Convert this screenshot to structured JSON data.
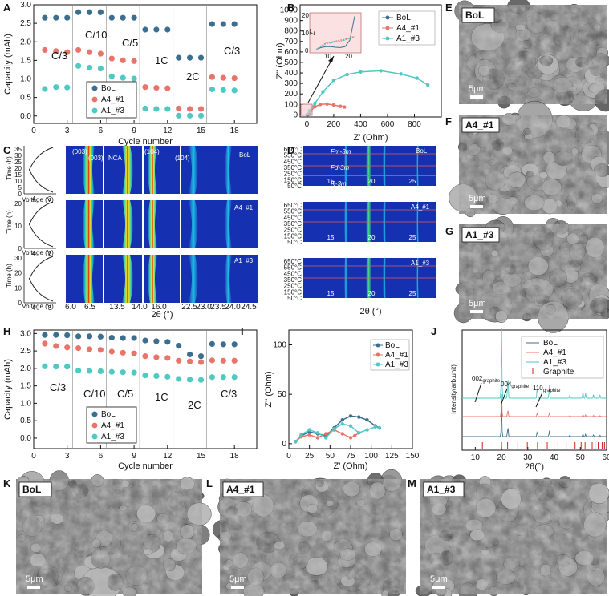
{
  "colors": {
    "bol": "#3c6e8f",
    "a4": "#e8746a",
    "a1": "#4fc9c2",
    "graphite": "#d02020",
    "map_bg": "#1530b0"
  },
  "panels": {
    "A": "A",
    "B": "B",
    "C": "C",
    "D": "D",
    "E": "E",
    "F": "F",
    "G": "G",
    "H": "H",
    "I": "I",
    "J": "J",
    "K": "K",
    "L": "L",
    "M": "M"
  },
  "sem": {
    "E": {
      "tag": "BoL",
      "scale": "5μm"
    },
    "F": {
      "tag": "A4_#1",
      "scale": "5μm"
    },
    "G": {
      "tag": "A1_#3",
      "scale": "5μm"
    },
    "K": {
      "tag": "BoL",
      "scale": "5μm"
    },
    "L": {
      "tag": "A4_#1",
      "scale": "5μm"
    },
    "M": {
      "tag": "A1_#3",
      "scale": "5μm"
    }
  },
  "chart_data": [
    {
      "id": "A",
      "type": "scatter",
      "xlabel": "Cycle number",
      "ylabel": "Capacity (mAh)",
      "xlim": [
        0,
        20
      ],
      "ylim": [
        -0.2,
        3.0
      ],
      "xticks": [
        "0",
        "3",
        "6",
        "9",
        "12",
        "15",
        "18"
      ],
      "yticks": [
        "0.0",
        "0.5",
        "1.0",
        "1.5",
        "2.0",
        "2.5",
        "3.0"
      ],
      "rate_labels": [
        "C/3",
        "C/10",
        "C/5",
        "1C",
        "2C",
        "C/3"
      ],
      "x": [
        1,
        2,
        3,
        4,
        5,
        6,
        7,
        8,
        9,
        10,
        11,
        12,
        13,
        14,
        15,
        16,
        17,
        18
      ],
      "series": [
        {
          "name": "BoL",
          "values": [
            2.65,
            2.65,
            2.65,
            2.8,
            2.8,
            2.8,
            2.65,
            2.65,
            2.65,
            2.33,
            2.33,
            2.33,
            1.57,
            1.57,
            1.57,
            2.48,
            2.48,
            2.48
          ]
        },
        {
          "name": "A4_#1",
          "values": [
            1.78,
            1.75,
            1.72,
            1.78,
            1.72,
            1.68,
            1.55,
            1.5,
            1.48,
            0.78,
            0.76,
            0.75,
            0.2,
            0.19,
            0.19,
            1.05,
            1.03,
            1.02
          ]
        },
        {
          "name": "A1_#3",
          "values": [
            0.73,
            0.78,
            0.77,
            1.35,
            1.3,
            1.28,
            1.07,
            1.03,
            1.01,
            0.2,
            0.19,
            0.19,
            0.01,
            0.01,
            0.01,
            0.72,
            0.7,
            0.69
          ]
        }
      ]
    },
    {
      "id": "B",
      "type": "line",
      "xlabel": "Z' (Ohm)",
      "ylabel": "Z'' (Ohm)",
      "xlim": [
        -50,
        1000
      ],
      "ylim": [
        -20,
        1050
      ],
      "xticks": [
        "0",
        "200",
        "400",
        "600",
        "800"
      ],
      "yticks": [
        "0",
        "100",
        "200",
        "300",
        "400",
        "500",
        "600",
        "700",
        "800",
        "900",
        "1000"
      ],
      "series": [
        {
          "name": "BoL",
          "x": [
            3,
            5,
            8,
            10,
            12,
            14
          ],
          "y": [
            2,
            3,
            3,
            4,
            6,
            9
          ]
        },
        {
          "name": "A4_#1",
          "x": [
            5,
            30,
            60,
            100,
            150,
            200,
            250,
            280
          ],
          "y": [
            4,
            40,
            78,
            100,
            104,
            95,
            82,
            75
          ]
        },
        {
          "name": "A1_#3",
          "x": [
            3,
            20,
            60,
            120,
            200,
            300,
            400,
            550,
            700,
            820,
            900
          ],
          "y": [
            4,
            40,
            110,
            220,
            330,
            385,
            410,
            420,
            390,
            350,
            285
          ]
        }
      ],
      "inset": {
        "xticks": [
          "10",
          "20"
        ],
        "yticks": [
          "0",
          "10",
          "20"
        ],
        "ylabel": "Z''",
        "series": [
          {
            "name": "BoL",
            "x": [
              6,
              8,
              10,
              12,
              14,
              16,
              18,
              20,
              22
            ],
            "y": [
              1,
              2,
              2.5,
              2.5,
              2.2,
              2,
              2.5,
              6,
              19
            ]
          },
          {
            "name": "A4_#1",
            "x": [
              6,
              8,
              10,
              12,
              14,
              16,
              18,
              20,
              22
            ],
            "y": [
              1,
              3,
              4.5,
              5,
              5.5,
              6,
              6.5,
              7.5,
              8
            ]
          },
          {
            "name": "A1_#3",
            "x": [
              6,
              8,
              10,
              12,
              14,
              16,
              18,
              20,
              22
            ],
            "y": [
              1,
              2.5,
              4,
              4.5,
              5,
              5.5,
              6,
              7,
              7.5
            ]
          }
        ]
      }
    },
    {
      "id": "C",
      "type": "heatmap",
      "xlabel": "2θ (°)",
      "voltage_label": "Voltage (V)",
      "time_label": "Time (h)",
      "xticks": [
        "6.0",
        "6.5",
        "13.5",
        "14.0",
        "16.0",
        "22.5",
        "23.0",
        "23.5",
        "24.0",
        "24.5"
      ],
      "voltage_ticks": [
        "4",
        "3"
      ],
      "time_ticks_BoL": [
        "0",
        "5",
        "10",
        "15",
        "20",
        "25",
        "30",
        "35"
      ],
      "time_ticks_A4": [
        "0",
        "10",
        "20"
      ],
      "time_ticks_A1": [
        "0",
        "10",
        "20",
        "30"
      ],
      "annotations": [
        "(003)",
        "(003)",
        "NCA",
        "(104)",
        "(104)"
      ],
      "sample_labels": [
        "BoL",
        "A4_#1",
        "A1_#3"
      ]
    },
    {
      "id": "D",
      "type": "heatmap",
      "xlabel": "2θ (°)",
      "xticks": [
        "15",
        "20",
        "25"
      ],
      "temperatures": [
        "650°C",
        "550°C",
        "450°C",
        "350°C",
        "250°C",
        "150°C",
        "50°C"
      ],
      "phases": [
        "Fm-3m",
        "Fd-3m",
        "R-3m"
      ],
      "sample_labels": [
        "BoL",
        "A4_#1",
        "A1_#3"
      ]
    },
    {
      "id": "H",
      "type": "scatter",
      "xlabel": "Cycle number",
      "ylabel": "Capacity (mAh)",
      "xlim": [
        0,
        20
      ],
      "ylim": [
        -0.3,
        3.1
      ],
      "xticks": [
        "0",
        "3",
        "6",
        "9",
        "12",
        "15",
        "18"
      ],
      "yticks": [
        "0.0",
        "0.5",
        "1.0",
        "1.5",
        "2.0",
        "2.5",
        "3.0"
      ],
      "rate_labels": [
        "C/3",
        "C/10",
        "C/5",
        "1C",
        "2C",
        "C/3"
      ],
      "x": [
        1,
        2,
        3,
        4,
        5,
        6,
        7,
        8,
        9,
        10,
        11,
        12,
        13,
        14,
        15,
        16,
        17,
        18
      ],
      "series": [
        {
          "name": "BoL",
          "values": [
            2.96,
            2.96,
            2.95,
            2.92,
            2.92,
            2.91,
            2.88,
            2.87,
            2.87,
            2.8,
            2.78,
            2.76,
            2.65,
            2.4,
            2.35,
            2.7,
            2.69,
            2.69
          ]
        },
        {
          "name": "A4_#1",
          "values": [
            2.71,
            2.64,
            2.6,
            2.58,
            2.55,
            2.53,
            2.48,
            2.45,
            2.43,
            2.35,
            2.32,
            2.3,
            2.22,
            2.2,
            2.18,
            2.23,
            2.22,
            2.22
          ]
        },
        {
          "name": "A1_#3",
          "values": [
            2.06,
            2.05,
            2.05,
            1.94,
            1.93,
            1.92,
            1.9,
            1.89,
            1.88,
            1.8,
            1.78,
            1.76,
            1.7,
            1.68,
            1.67,
            1.75,
            1.75,
            1.75
          ]
        }
      ]
    },
    {
      "id": "I",
      "type": "line",
      "xlabel": "Z' (Ohm)",
      "ylabel": "Z'' (Ohm)",
      "xlim": [
        0,
        150
      ],
      "ylim": [
        -5,
        115
      ],
      "xticks": [
        "0",
        "25",
        "50",
        "75",
        "100",
        "125",
        "150"
      ],
      "yticks": [
        "0",
        "50",
        "100"
      ],
      "series": [
        {
          "name": "BoL",
          "x": [
            8,
            15,
            25,
            35,
            45,
            55,
            65,
            75,
            85,
            95,
            105,
            110
          ],
          "y": [
            2,
            8,
            12,
            10,
            8,
            16,
            24,
            28,
            27,
            24,
            18,
            16
          ]
        },
        {
          "name": "A4_#1",
          "x": [
            8,
            15,
            25,
            35,
            45,
            55,
            65,
            75,
            80,
            85
          ],
          "y": [
            2,
            7,
            9,
            6,
            10,
            14,
            10,
            6,
            8,
            11
          ]
        },
        {
          "name": "A1_#3",
          "x": [
            8,
            15,
            25,
            35,
            45,
            55,
            65,
            75,
            85,
            95,
            105,
            110
          ],
          "y": [
            2,
            9,
            14,
            11,
            6,
            15,
            20,
            18,
            11,
            14,
            17,
            16
          ]
        }
      ]
    },
    {
      "id": "J",
      "type": "line",
      "xlabel": "2θ(°)",
      "ylabel": "Intensity(arb.unit)",
      "xlim": [
        5,
        60
      ],
      "xticks": [
        "10",
        "20",
        "30",
        "40",
        "50",
        "60"
      ],
      "annotations": [
        {
          "text": "002",
          "sub": "graphite",
          "x": 12.5
        },
        {
          "text": "004",
          "sub": "graphite",
          "x": 22.5
        },
        {
          "text": "110",
          "sub": "graphite",
          "x": 33.5
        }
      ],
      "legend": [
        "BoL",
        "A4_#1",
        "A1_#3",
        "Graphite"
      ],
      "graphite_ref_peaks": [
        12.7,
        20.0,
        22.3,
        26.2,
        29.8,
        33.7,
        37.4,
        41.5,
        44.6,
        48.0,
        50.3,
        51.8,
        54.5,
        55.6,
        56.8,
        58.3,
        59.2
      ]
    }
  ]
}
